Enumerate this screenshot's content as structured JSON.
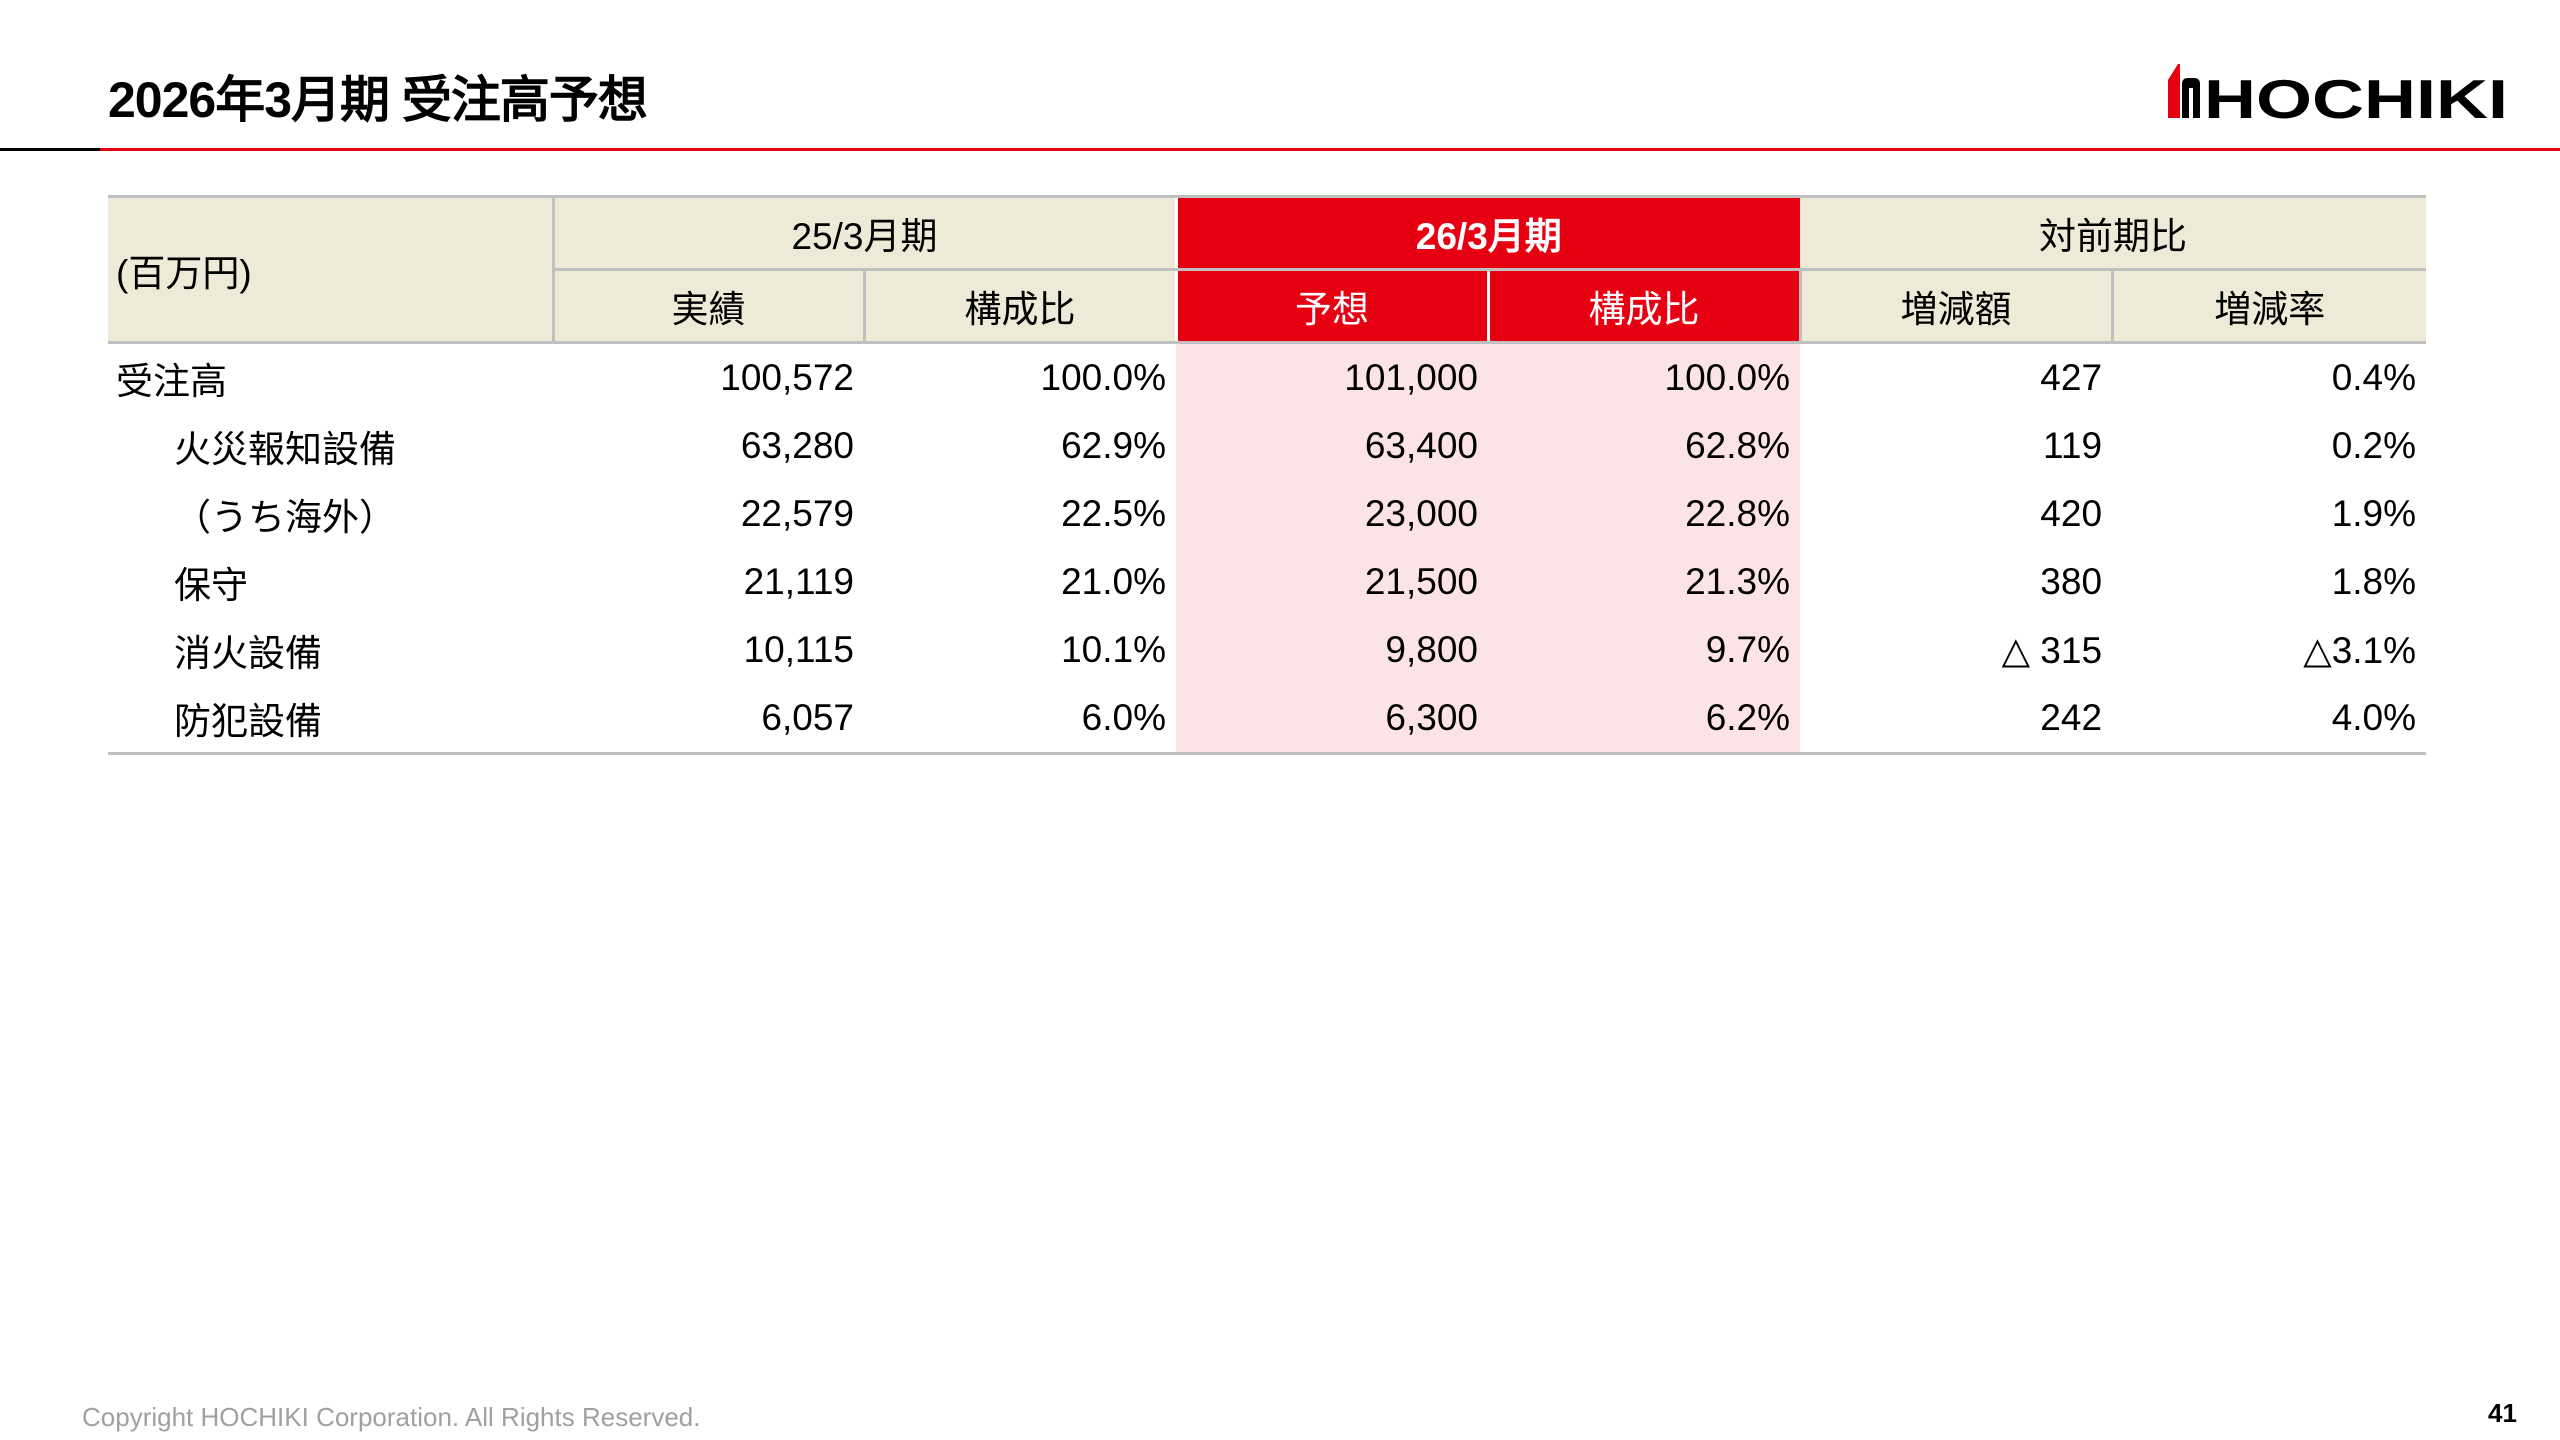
{
  "title": "2026年3月期 受注高予想",
  "logo": {
    "text": "HOCHIKI",
    "brand_color": "#e60012"
  },
  "table": {
    "unit_label": "(百万円)",
    "group_headers": [
      "25/3月期",
      "26/3月期",
      "対前期比"
    ],
    "sub_headers": [
      "実績",
      "構成比",
      "予想",
      "構成比",
      "増減額",
      "増減率"
    ],
    "rows": [
      {
        "label": "受注高",
        "values": [
          "100,572",
          "100.0%",
          "101,000",
          "100.0%",
          "427",
          "0.4%"
        ]
      },
      {
        "label": "火災報知設備",
        "values": [
          "63,280",
          "62.9%",
          "63,400",
          "62.8%",
          "119",
          "0.2%"
        ]
      },
      {
        "label": "（うち海外）",
        "values": [
          "22,579",
          "22.5%",
          "23,000",
          "22.8%",
          "420",
          "1.9%"
        ]
      },
      {
        "label": "保守",
        "values": [
          "21,119",
          "21.0%",
          "21,500",
          "21.3%",
          "380",
          "1.8%"
        ]
      },
      {
        "label": "消火設備",
        "values": [
          "10,115",
          "10.1%",
          "9,800",
          "9.7%",
          "△ 315",
          "△3.1%"
        ]
      },
      {
        "label": "防犯設備",
        "values": [
          "6,057",
          "6.0%",
          "6,300",
          "6.2%",
          "242",
          "4.0%"
        ]
      }
    ]
  },
  "footer": {
    "copyright": "Copyright HOCHIKI Corporation. All Rights Reserved.",
    "page_number": "41"
  }
}
